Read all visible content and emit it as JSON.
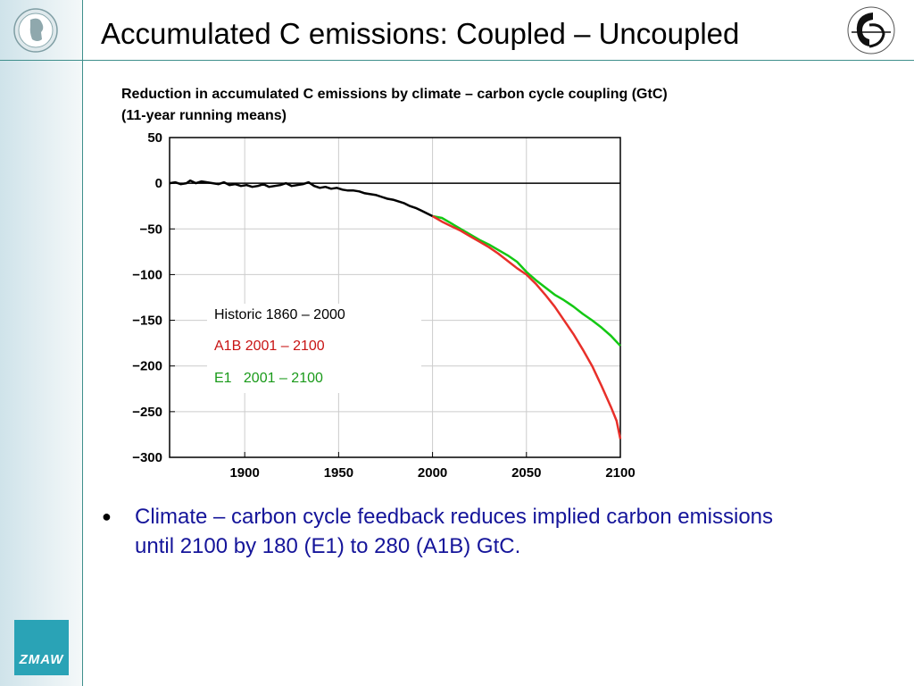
{
  "page": {
    "title": "Accumulated C emissions: Coupled – Uncoupled",
    "bullet": "Climate – carbon cycle feedback reduces implied carbon emissions until 2100 by 180 (E1) to 280 (A1B) GtC.",
    "logos": {
      "bottom_text": "ZMAW"
    }
  },
  "colors": {
    "accent_line": "#3f8f8c",
    "historic": "#000000",
    "a1b": "#e8302a",
    "e1": "#14c814",
    "bullet_text": "#15159a",
    "legend_a1b": "#c81414",
    "legend_e1": "#1a9a1a"
  },
  "chart_data": {
    "type": "line",
    "title_line1": "Reduction in accumulated C emissions by climate – carbon cycle coupling (GtC)",
    "title_line2": "(11-year running means)",
    "xlabel": "",
    "ylabel": "",
    "xlim": [
      1860,
      2100
    ],
    "ylim": [
      -300,
      50
    ],
    "x_ticks": [
      1900,
      1950,
      2000,
      2050,
      2100
    ],
    "y_ticks": [
      50,
      0,
      -50,
      -100,
      -150,
      -200,
      -250,
      -300
    ],
    "grid": true,
    "legend_position": "center-left",
    "series": [
      {
        "name": "Historic 1860 – 2000",
        "color": "#000000",
        "x": [
          1860,
          1863,
          1866,
          1869,
          1871,
          1874,
          1877,
          1880,
          1883,
          1886,
          1889,
          1892,
          1895,
          1898,
          1901,
          1904,
          1907,
          1910,
          1913,
          1916,
          1919,
          1922,
          1925,
          1928,
          1931,
          1934,
          1937,
          1940,
          1943,
          1946,
          1949,
          1952,
          1955,
          1958,
          1961,
          1964,
          1967,
          1970,
          1973,
          1976,
          1979,
          1982,
          1985,
          1988,
          1991,
          1994,
          1997,
          2000
        ],
        "y": [
          0,
          1,
          -1,
          0,
          3,
          0,
          2,
          1,
          0,
          -1,
          1,
          -2,
          -1,
          -3,
          -2,
          -4,
          -3,
          -1,
          -4,
          -3,
          -2,
          0,
          -3,
          -2,
          -1,
          1,
          -3,
          -5,
          -4,
          -6,
          -5,
          -7,
          -8,
          -8,
          -9,
          -11,
          -12,
          -13,
          -15,
          -17,
          -18,
          -20,
          -22,
          -25,
          -27,
          -30,
          -33,
          -36
        ]
      },
      {
        "name": "A1B 2001 – 2100",
        "color": "#e8302a",
        "x": [
          2000,
          2005,
          2010,
          2015,
          2020,
          2025,
          2030,
          2035,
          2040,
          2045,
          2050,
          2055,
          2060,
          2065,
          2070,
          2075,
          2080,
          2085,
          2090,
          2095,
          2098,
          2100
        ],
        "y": [
          -36,
          -42,
          -47,
          -52,
          -58,
          -64,
          -70,
          -77,
          -85,
          -93,
          -100,
          -110,
          -122,
          -135,
          -150,
          -165,
          -182,
          -200,
          -222,
          -245,
          -260,
          -280
        ]
      },
      {
        "name": "E1   2001 – 2100",
        "color": "#14c814",
        "x": [
          2000,
          2005,
          2010,
          2015,
          2020,
          2025,
          2030,
          2035,
          2040,
          2045,
          2050,
          2055,
          2060,
          2065,
          2070,
          2075,
          2080,
          2085,
          2090,
          2095,
          2100
        ],
        "y": [
          -36,
          -38,
          -44,
          -50,
          -56,
          -62,
          -67,
          -73,
          -79,
          -86,
          -97,
          -106,
          -114,
          -122,
          -128,
          -135,
          -143,
          -150,
          -158,
          -167,
          -178
        ]
      }
    ]
  }
}
